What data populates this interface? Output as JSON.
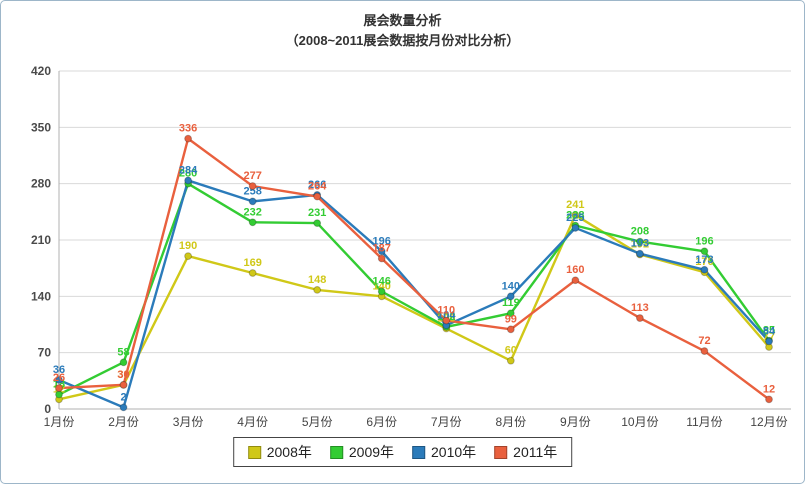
{
  "chart_data": {
    "type": "line",
    "title": "展会数量分析",
    "subtitle": "（2008~2011展会数据按月份对比分析）",
    "categories": [
      "1月份",
      "2月份",
      "3月份",
      "4月份",
      "5月份",
      "6月份",
      "7月份",
      "8月份",
      "9月份",
      "10月份",
      "11月份",
      "12月份"
    ],
    "series": [
      {
        "name": "2008年",
        "color": "#d0c818",
        "values": [
          12,
          30,
          190,
          169,
          148,
          140,
          100,
          60,
          241,
          192,
          170,
          77
        ]
      },
      {
        "name": "2009年",
        "color": "#33cc33",
        "values": [
          18,
          58,
          280,
          232,
          231,
          146,
          102,
          119,
          228,
          208,
          196,
          85
        ]
      },
      {
        "name": "2010年",
        "color": "#2b7bba",
        "values": [
          36,
          2,
          284,
          258,
          266,
          196,
          104,
          140,
          225,
          193,
          173,
          84
        ]
      },
      {
        "name": "2011年",
        "color": "#e9603e",
        "values": [
          26,
          30,
          336,
          277,
          264,
          187,
          110,
          99,
          160,
          113,
          72,
          12
        ]
      }
    ],
    "ylim": [
      0,
      420
    ],
    "yticks": [
      0,
      70,
      140,
      210,
      280,
      350,
      420
    ],
    "grid": true,
    "grid_color": "#d9d9d9",
    "axis_color": "#b0b0b0",
    "tick_label_color": "#4a4a4a",
    "legend_position": "bottom"
  }
}
